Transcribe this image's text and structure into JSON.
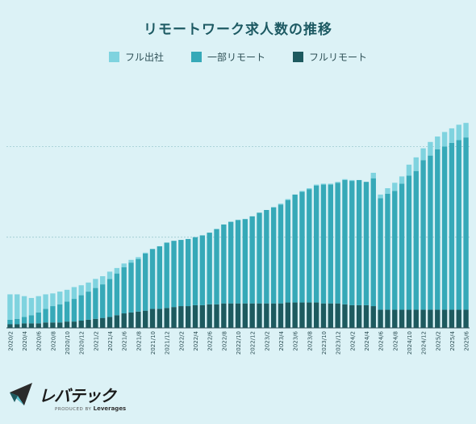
{
  "chart_data": {
    "type": "bar",
    "stacked": true,
    "title": "リモートワーク求人数の推移",
    "legend_position": "top",
    "grid": true,
    "series": [
      {
        "name": "フル出社",
        "color": "#7fd3df"
      },
      {
        "name": "一部リモート",
        "color": "#36a9b8"
      },
      {
        "name": "フルリモート",
        "color": "#1d5a5f"
      }
    ],
    "x": [
      "2020/2",
      "2020/3",
      "2020/4",
      "2020/5",
      "2020/6",
      "2020/7",
      "2020/8",
      "2020/9",
      "2020/10",
      "2020/11",
      "2020/12",
      "2021/1",
      "2021/2",
      "2021/3",
      "2021/4",
      "2021/5",
      "2021/6",
      "2021/7",
      "2021/8",
      "2021/9",
      "2021/10",
      "2021/11",
      "2021/12",
      "2022/1",
      "2022/2",
      "2022/3",
      "2022/4",
      "2022/5",
      "2022/6",
      "2022/7",
      "2022/8",
      "2022/9",
      "2022/10",
      "2022/11",
      "2022/12",
      "2023/1",
      "2023/2",
      "2023/3",
      "2023/4",
      "2023/5",
      "2023/6",
      "2023/7",
      "2023/8",
      "2023/9",
      "2023/10",
      "2023/11",
      "2023/12",
      "2024/1",
      "2024/2",
      "2024/3",
      "2024/4",
      "2024/5",
      "2024/6",
      "2024/7",
      "2024/8",
      "2024/9",
      "2024/10",
      "2024/11",
      "2024/12",
      "2025/1",
      "2025/2",
      "2025/3",
      "2025/4",
      "2025/5",
      "2025/6"
    ],
    "x_tick_labels": [
      "2020/2",
      "2020/4",
      "2020/6",
      "2020/8",
      "2020/10",
      "2020/12",
      "2021/2",
      "2021/4",
      "2021/6",
      "2021/8",
      "2021/10",
      "2021/12",
      "2022/2",
      "2022/4",
      "2022/6",
      "2022/8",
      "2022/10",
      "2022/12",
      "2023/2",
      "2023/4",
      "2023/6",
      "2023/8",
      "2023/10",
      "2023/12",
      "2024/2",
      "2024/4",
      "2024/6",
      "2024/8",
      "2024/10",
      "2024/12",
      "2025/2",
      "2025/4",
      "2025/6"
    ],
    "totals": [
      37,
      37,
      35,
      33,
      35,
      37,
      38,
      40,
      42,
      45,
      47,
      50,
      54,
      57,
      62,
      66,
      71,
      75,
      78,
      83,
      86,
      89,
      92,
      94,
      94,
      95,
      97,
      99,
      102,
      106,
      111,
      114,
      116,
      118,
      122,
      127,
      130,
      133,
      137,
      142,
      147,
      151,
      154,
      158,
      159,
      159,
      161,
      164,
      163,
      163,
      161,
      171,
      147,
      154,
      160,
      167,
      180,
      188,
      198,
      205,
      211,
      216,
      220,
      224,
      226
    ],
    "full_remote": [
      4,
      4,
      5,
      5,
      5,
      6,
      6,
      6,
      7,
      7,
      8,
      9,
      10,
      11,
      12,
      14,
      16,
      17,
      18,
      19,
      21,
      21,
      22,
      23,
      24,
      24,
      25,
      25,
      26,
      26,
      27,
      27,
      27,
      27,
      27,
      27,
      27,
      27,
      27,
      28,
      28,
      28,
      28,
      28,
      27,
      27,
      27,
      26,
      25,
      25,
      25,
      24,
      20,
      20,
      20,
      20,
      20,
      20,
      20,
      20,
      20,
      20,
      20,
      20,
      20
    ],
    "partial_remote": [
      5,
      6,
      7,
      9,
      12,
      15,
      18,
      20,
      22,
      25,
      28,
      31,
      34,
      37,
      42,
      46,
      51,
      55,
      58,
      63,
      66,
      69,
      72,
      73,
      73,
      74,
      75,
      77,
      79,
      83,
      87,
      90,
      92,
      93,
      96,
      100,
      103,
      106,
      109,
      113,
      119,
      122,
      125,
      129,
      131,
      131,
      133,
      137,
      137,
      138,
      136,
      141,
      123,
      128,
      131,
      139,
      148,
      153,
      165,
      170,
      177,
      180,
      184,
      187,
      190
    ],
    "ylim": [
      0,
      260
    ],
    "ytick_values": [
      0,
      100,
      200
    ]
  },
  "branding": {
    "logo": "レバテック",
    "produced_by": "PRODUCED BY",
    "company": "Leverages"
  }
}
